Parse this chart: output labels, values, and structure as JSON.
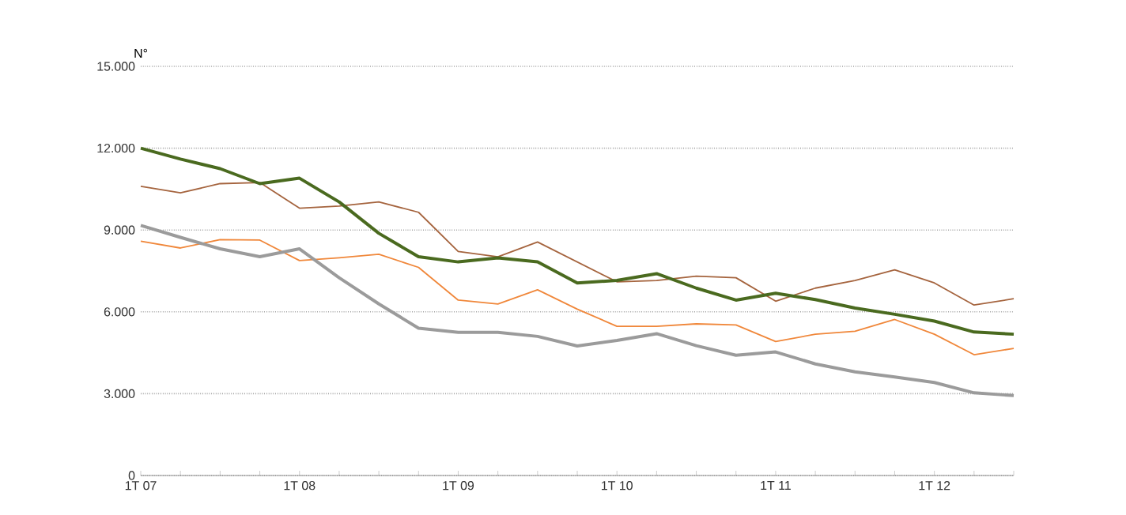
{
  "chart_data": {
    "type": "line",
    "ylabel": "N°",
    "categories": [
      "1T 07",
      null,
      null,
      null,
      "1T 08",
      null,
      null,
      null,
      "1T 09",
      null,
      null,
      null,
      "1T 10",
      null,
      null,
      null,
      "1T 11",
      null,
      null,
      null,
      "1T 12",
      null,
      null
    ],
    "ylim": [
      0,
      15000
    ],
    "yticks": [
      {
        "value": 0,
        "label": "0"
      },
      {
        "value": 3000,
        "label": "3.000"
      },
      {
        "value": 6000,
        "label": "6.000"
      },
      {
        "value": 9000,
        "label": "9.000"
      },
      {
        "value": 12000,
        "label": "12.000"
      },
      {
        "value": 15000,
        "label": "15.000"
      }
    ],
    "grid": "y",
    "series": [
      {
        "color": "#a5643e",
        "values": [
          10600,
          10360,
          10700,
          10740,
          9800,
          9880,
          10030,
          9650,
          8210,
          8020,
          8560,
          7830,
          7100,
          7150,
          7310,
          7250,
          6390,
          6870,
          7150,
          7540,
          7060,
          6250,
          6480
        ]
      },
      {
        "color": "#f0873a",
        "values": [
          8590,
          8340,
          8650,
          8630,
          7880,
          7980,
          8110,
          7630,
          6430,
          6290,
          6810,
          6100,
          5470,
          5470,
          5560,
          5520,
          4910,
          5180,
          5290,
          5720,
          5180,
          4430,
          4660
        ]
      },
      {
        "color": "#9b9b9b",
        "values": [
          9170,
          8730,
          8310,
          8020,
          8310,
          7250,
          6290,
          5400,
          5250,
          5250,
          5100,
          4750,
          4950,
          5200,
          4760,
          4410,
          4530,
          4090,
          3800,
          3610,
          3410,
          3030,
          2930
        ]
      },
      {
        "color": "#4a6a1f",
        "values": [
          12000,
          11600,
          11250,
          10700,
          10900,
          10030,
          8880,
          8020,
          7830,
          7980,
          7830,
          7060,
          7150,
          7400,
          6870,
          6430,
          6680,
          6450,
          6140,
          5910,
          5660,
          5260,
          5180
        ]
      }
    ]
  }
}
